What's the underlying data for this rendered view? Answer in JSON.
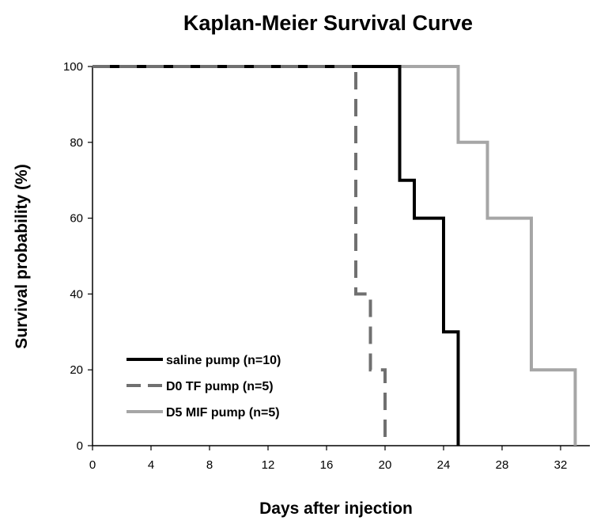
{
  "chart_data": {
    "type": "line",
    "step": true,
    "title": "Kaplan-Meier Survival Curve",
    "xlabel": "Days after injection",
    "ylabel": "Survival probability (%)",
    "xlim": [
      0,
      34
    ],
    "ylim": [
      0,
      100
    ],
    "xticks": [
      0,
      4,
      8,
      12,
      16,
      20,
      24,
      28,
      32
    ],
    "yticks": [
      0,
      20,
      40,
      60,
      80,
      100
    ],
    "grid": false,
    "legend_position": "bottom-left",
    "series": [
      {
        "name": "saline pump (n=10)",
        "color": "#000000",
        "dash": "solid",
        "points": [
          [
            0,
            100
          ],
          [
            21,
            100
          ],
          [
            21,
            70
          ],
          [
            22,
            70
          ],
          [
            22,
            60
          ],
          [
            24,
            60
          ],
          [
            24,
            30
          ],
          [
            25,
            30
          ],
          [
            25,
            0
          ]
        ]
      },
      {
        "name": "D0 TF pump (n=5)",
        "color": "#707070",
        "dash": "dashed",
        "points": [
          [
            0,
            100
          ],
          [
            18,
            100
          ],
          [
            18,
            40
          ],
          [
            19,
            40
          ],
          [
            19,
            20
          ],
          [
            20,
            20
          ],
          [
            20,
            0
          ]
        ]
      },
      {
        "name": "D5 MIF pump (n=5)",
        "color": "#a6a6a6",
        "dash": "solid",
        "points": [
          [
            0,
            100
          ],
          [
            25,
            100
          ],
          [
            25,
            80
          ],
          [
            27,
            80
          ],
          [
            27,
            60
          ],
          [
            30,
            60
          ],
          [
            30,
            20
          ],
          [
            33,
            20
          ],
          [
            33,
            0
          ]
        ]
      }
    ]
  }
}
